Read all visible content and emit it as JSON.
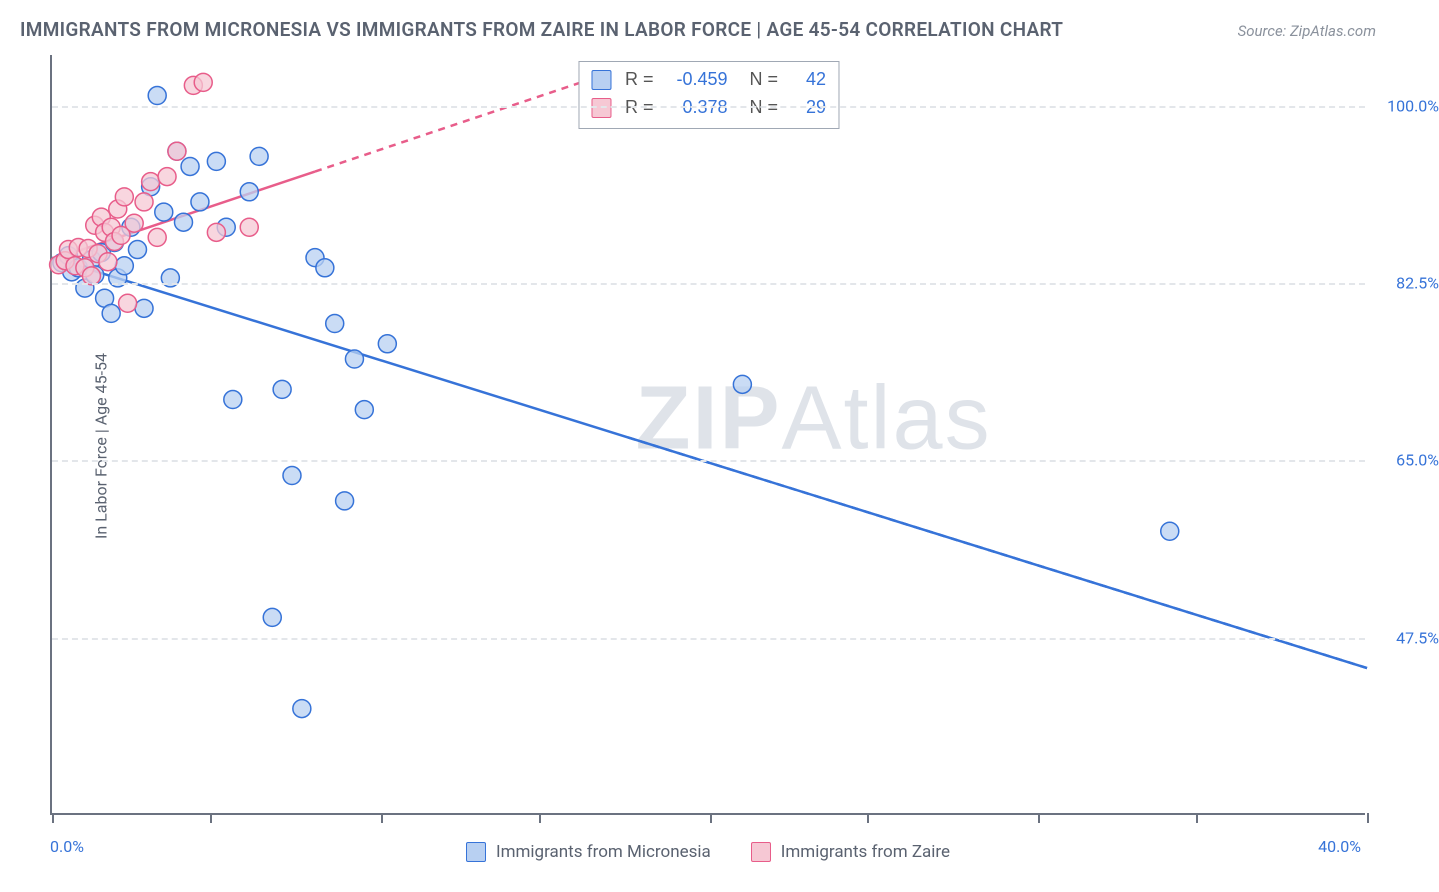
{
  "title": "IMMIGRANTS FROM MICRONESIA VS IMMIGRANTS FROM ZAIRE IN LABOR FORCE | AGE 45-54 CORRELATION CHART",
  "source": "Source: ZipAtlas.com",
  "ylabel": "In Labor Force | Age 45-54",
  "watermark": "ZIPAtlas",
  "chart": {
    "type": "scatter",
    "xlim": [
      0.0,
      40.0
    ],
    "ylim": [
      30.0,
      105.0
    ],
    "xticks_pct": [
      0,
      12,
      25,
      37,
      50,
      62,
      75,
      87,
      100
    ],
    "ygrid": [
      47.5,
      65.0,
      82.5,
      100.0
    ],
    "ytick_labels": [
      "47.5%",
      "65.0%",
      "82.5%",
      "100.0%"
    ],
    "xmin_label": "0.0%",
    "xmax_label": "40.0%",
    "background": "#ffffff",
    "grid_color": "#e3e6ea",
    "axis_color": "#6b7280",
    "marker_radius": 9,
    "marker_stroke_width": 1.5,
    "series": [
      {
        "key": "micronesia",
        "label": "Immigrants from Micronesia",
        "fill": "#b8d0f2",
        "stroke": "#3673d8",
        "trend": {
          "x1": 0.0,
          "y1": 85.0,
          "x2": 40.0,
          "y2": 44.5,
          "extrapolate_from_x": 40.0,
          "width": 2.5
        },
        "R": "-0.459",
        "N": "42",
        "points": [
          [
            0.3,
            84.5
          ],
          [
            0.5,
            85.2
          ],
          [
            0.6,
            83.6
          ],
          [
            0.8,
            84.0
          ],
          [
            1.0,
            82.0
          ],
          [
            1.2,
            84.8
          ],
          [
            1.3,
            83.3
          ],
          [
            1.5,
            85.5
          ],
          [
            1.6,
            81.0
          ],
          [
            1.8,
            79.5
          ],
          [
            1.9,
            86.5
          ],
          [
            2.0,
            83.0
          ],
          [
            2.2,
            84.2
          ],
          [
            2.4,
            88.0
          ],
          [
            2.6,
            85.8
          ],
          [
            2.8,
            80.0
          ],
          [
            3.0,
            92.0
          ],
          [
            3.2,
            101.0
          ],
          [
            3.4,
            89.5
          ],
          [
            3.6,
            83.0
          ],
          [
            3.8,
            95.5
          ],
          [
            4.0,
            88.5
          ],
          [
            4.2,
            94.0
          ],
          [
            4.5,
            90.5
          ],
          [
            5.0,
            94.5
          ],
          [
            5.3,
            88.0
          ],
          [
            5.5,
            71.0
          ],
          [
            6.0,
            91.5
          ],
          [
            6.3,
            95.0
          ],
          [
            6.7,
            49.5
          ],
          [
            7.0,
            72.0
          ],
          [
            7.3,
            63.5
          ],
          [
            7.6,
            40.5
          ],
          [
            8.0,
            85.0
          ],
          [
            8.3,
            84.0
          ],
          [
            8.6,
            78.5
          ],
          [
            8.9,
            61.0
          ],
          [
            9.2,
            75.0
          ],
          [
            9.5,
            70.0
          ],
          [
            10.2,
            76.5
          ],
          [
            21.0,
            72.5
          ],
          [
            34.0,
            58.0
          ]
        ]
      },
      {
        "key": "zaire",
        "label": "Immigrants from Zaire",
        "fill": "#f6c8d4",
        "stroke": "#e85d8a",
        "trend": {
          "x1": 0.0,
          "y1": 84.8,
          "x2": 8.0,
          "y2": 93.5,
          "extrapolate_from_x": 8.0,
          "width": 2.5,
          "dash": "7,6"
        },
        "R": "0.378",
        "N": "29",
        "points": [
          [
            0.2,
            84.3
          ],
          [
            0.4,
            84.7
          ],
          [
            0.5,
            85.8
          ],
          [
            0.7,
            84.2
          ],
          [
            0.8,
            86.0
          ],
          [
            1.0,
            84.0
          ],
          [
            1.1,
            85.9
          ],
          [
            1.2,
            83.2
          ],
          [
            1.3,
            88.2
          ],
          [
            1.4,
            85.4
          ],
          [
            1.5,
            89.0
          ],
          [
            1.6,
            87.5
          ],
          [
            1.7,
            84.6
          ],
          [
            1.8,
            88.0
          ],
          [
            1.9,
            86.6
          ],
          [
            2.0,
            89.8
          ],
          [
            2.1,
            87.2
          ],
          [
            2.2,
            91.0
          ],
          [
            2.3,
            80.5
          ],
          [
            2.5,
            88.4
          ],
          [
            2.8,
            90.5
          ],
          [
            3.0,
            92.5
          ],
          [
            3.2,
            87.0
          ],
          [
            3.5,
            93.0
          ],
          [
            3.8,
            95.5
          ],
          [
            4.3,
            102.0
          ],
          [
            4.6,
            102.3
          ],
          [
            5.0,
            87.5
          ],
          [
            6.0,
            88.0
          ]
        ]
      }
    ]
  },
  "legend": {
    "R_label": "R =",
    "N_label": "N ="
  }
}
